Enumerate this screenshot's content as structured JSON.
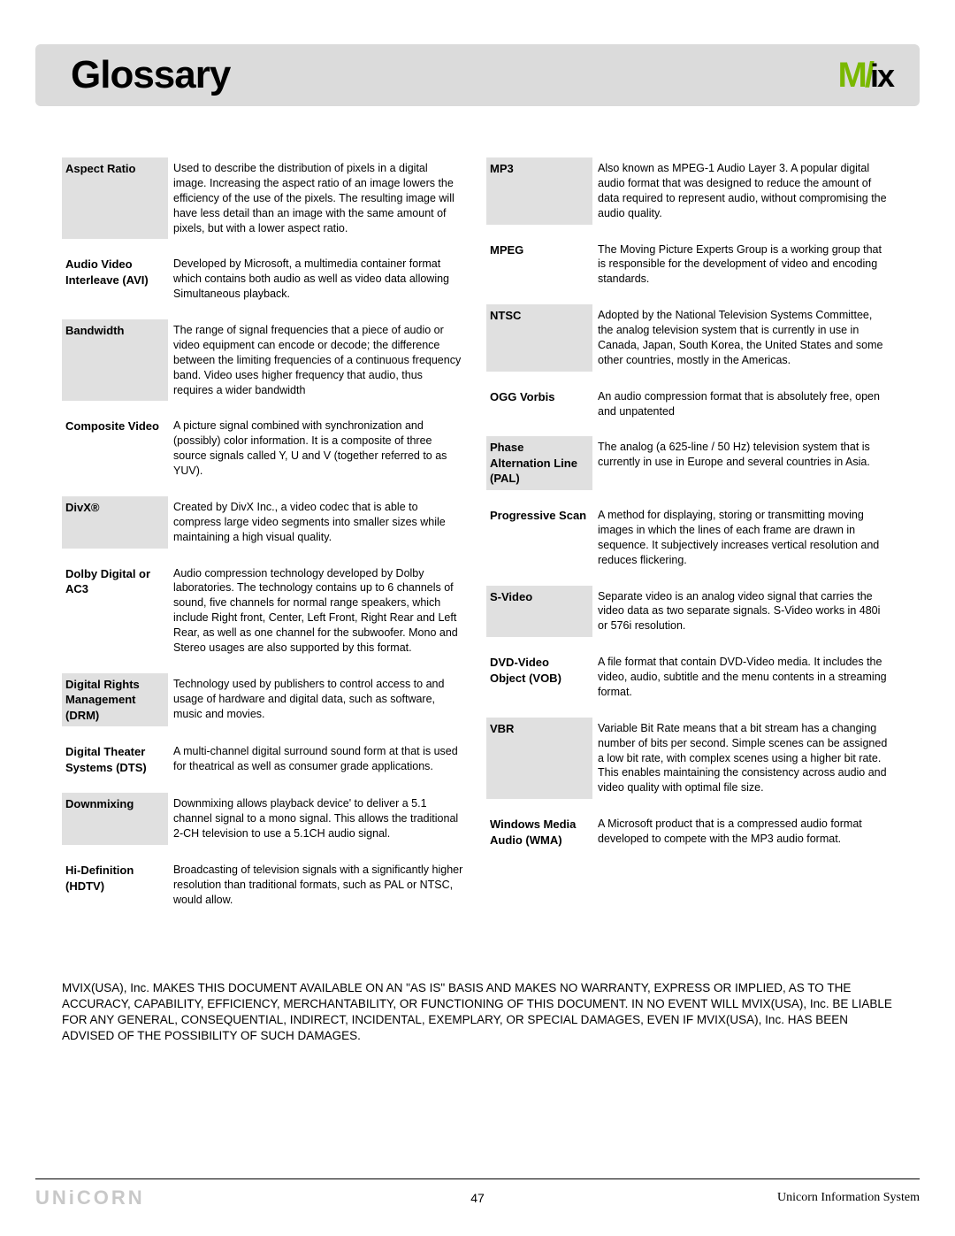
{
  "header": {
    "title": "Glossary",
    "logo_prefix": "M",
    "logo_suffix": "ix",
    "logo_color_prefix": "#7ab800",
    "logo_color_suffix": "#000000"
  },
  "columns": {
    "left": [
      {
        "term": "Aspect Ratio",
        "def": "Used to describe the distribution of pixels in a digital image. Increasing the aspect ratio of an image lowers the efficiency of the use of the pixels. The resulting image will have less detail than an image with the same amount of pixels, but with a lower aspect ratio.",
        "shaded": true
      },
      {
        "term": "Audio Video Interleave (AVI)",
        "def": "Developed by Microsoft, a multimedia container format which contains both audio as well as video data allowing Simultaneous playback.",
        "shaded": false
      },
      {
        "term": "Bandwidth",
        "def": "The range of signal frequencies that a piece of audio or video equipment can encode or decode; the difference between the limiting frequencies of a continuous frequency band. Video uses higher frequency that audio, thus requires a wider bandwidth",
        "shaded": true
      },
      {
        "term": "Composite Video",
        "def": "A picture signal combined with synchronization and (possibly) color information. It is a composite of three source signals called Y, U and V (together referred to as YUV).",
        "shaded": false
      },
      {
        "term": "DivX®",
        "def": "Created by DivX Inc., a video codec that is able to compress large video segments into smaller sizes while maintaining a high visual quality.",
        "shaded": true
      },
      {
        "term": "Dolby Digital or AC3",
        "def": "Audio compression technology developed by Dolby laboratories.  The technology contains up to 6 channels of sound, five channels for normal range speakers, which include Right front, Center, Left Front, Right Rear and Left Rear, as well as one channel for the subwoofer.  Mono and Stereo usages are also supported by this format.",
        "shaded": false
      },
      {
        "term": "Digital Rights Management (DRM)",
        "def": "Technology used by publishers to control access to and usage of hardware and digital data, such as software, music and movies.",
        "shaded": true
      },
      {
        "term": "Digital Theater Systems (DTS)",
        "def": "A multi-channel digital surround sound form at that is used for theatrical as well as consumer grade applications.",
        "shaded": false
      },
      {
        "term": "Downmixing",
        "def": "Downmixing allows playback device' to deliver a 5.1 channel signal to a mono signal. This allows the traditional 2-CH television to use a 5.1CH audio signal.",
        "shaded": true
      },
      {
        "term": "Hi-Definition (HDTV)",
        "def": "Broadcasting of television signals with a significantly higher resolution than traditional formats, such as PAL or NTSC, would allow.",
        "shaded": false
      }
    ],
    "right": [
      {
        "term": "MP3",
        "def": "Also known as MPEG-1 Audio Layer 3.  A popular digital audio format that was designed to reduce the amount of data required to represent audio, without compromising the audio quality.",
        "shaded": true
      },
      {
        "term": "MPEG",
        "def": "The Moving Picture Experts Group is a working group that is responsible for the development of video and encoding standards.",
        "shaded": false
      },
      {
        "term": "NTSC",
        "def": "Adopted by the National Television Systems Committee, the analog television system that is currently in use in Canada, Japan, South Korea, the United States and some other countries, mostly in the Americas.",
        "shaded": true
      },
      {
        "term": "OGG Vorbis",
        "def": "An audio compression format that is absolutely free, open and unpatented",
        "shaded": false
      },
      {
        "term": "Phase Alternation Line (PAL)",
        "def": "The analog (a 625-line / 50 Hz) television system that is currently in use in Europe and several countries in Asia.",
        "shaded": true
      },
      {
        "term": "Progressive Scan",
        "def": "A method for displaying, storing or transmitting moving images in which the lines of each frame are drawn in sequence. It subjectively increases vertical resolution and reduces flickering.",
        "shaded": false
      },
      {
        "term": "S-Video",
        "def": "Separate video is an analog video signal that carries the video data as two separate signals. S-Video works in 480i or 576i resolution.",
        "shaded": true
      },
      {
        "term": "DVD-Video Object (VOB)",
        "def": "A file format that contain DVD-Video media.  It includes the video, audio, subtitle and the menu contents in a streaming format.",
        "shaded": false
      },
      {
        "term": "VBR",
        "def": "Variable Bit Rate means that a bit stream has a changing number of bits per second. Simple scenes can be assigned a low bit rate, with complex scenes using a higher bit rate. This enables maintaining the consistency across audio and video quality with optimal file size.",
        "shaded": true
      },
      {
        "term": "Windows Media Audio (WMA)",
        "def": "A Microsoft product that is a compressed audio format developed to compete with the MP3 audio format.",
        "shaded": false
      }
    ]
  },
  "disclaimer": "MVIX(USA), Inc. MAKES THIS DOCUMENT AVAILABLE ON AN \"AS IS\" BASIS AND MAKES NO WARRANTY, EXPRESS OR IMPLIED, AS TO THE ACCURACY, CAPABILITY, EFFICIENCY, MERCHANTABILITY, OR FUNCTIONING OF THIS DOCUMENT. IN NO EVENT WILL MVIX(USA), Inc. BE LIABLE FOR ANY GENERAL, CONSEQUENTIAL, INDIRECT, INCIDENTAL, EXEMPLARY, OR SPECIAL DAMAGES, EVEN IF MVIX(USA), Inc. HAS BEEN ADVISED OF THE POSSIBILITY OF SUCH DAMAGES.",
  "footer": {
    "left": "UNiCORN",
    "page": "47",
    "right": "Unicorn Information System"
  },
  "colors": {
    "header_bg": "#dbdbdb",
    "shaded_bg": "#e0e0e0",
    "text": "#000000",
    "footer_left": "#c8c8c8"
  }
}
